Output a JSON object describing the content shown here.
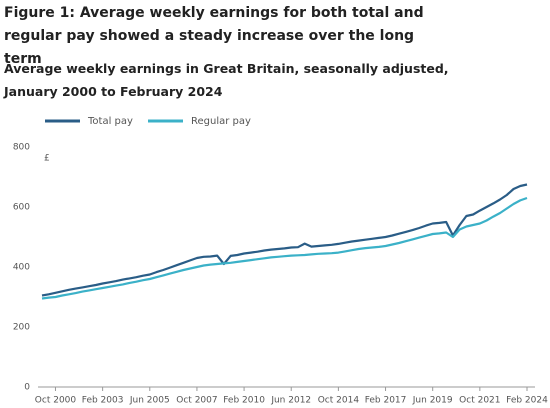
{
  "chart_data": {
    "type": "line",
    "title": "Figure 1: Average weekly earnings for both total and regular pay showed a steady increase over the long term",
    "subtitle": "Average weekly earnings in Great Britain, seasonally adjusted, January 2000 to February 2024",
    "y_unit": "£",
    "categories": [
      null,
      null,
      "Oct 2000",
      null,
      null,
      null,
      null,
      null,
      null,
      "Feb 2003",
      null,
      null,
      null,
      null,
      null,
      null,
      "Jun 2005",
      null,
      null,
      null,
      null,
      null,
      null,
      "Oct 2007",
      null,
      null,
      null,
      null,
      null,
      null,
      "Feb 2010",
      null,
      null,
      null,
      null,
      null,
      null,
      "Jun 2012",
      null,
      null,
      null,
      null,
      null,
      null,
      "Oct 2014",
      null,
      null,
      null,
      null,
      null,
      null,
      "Feb 2017",
      null,
      null,
      null,
      null,
      null,
      null,
      "Jun 2019",
      null,
      null,
      null,
      null,
      null,
      null,
      "Oct 2021",
      null,
      null,
      null,
      null,
      null,
      null,
      "Feb 2024"
    ],
    "series": [
      {
        "name": "Total pay",
        "color": "#2a5d87",
        "values": [
          305,
          309,
          314,
          319,
          324,
          328,
          332,
          336,
          340,
          345,
          349,
          353,
          358,
          362,
          366,
          371,
          375,
          383,
          390,
          398,
          406,
          414,
          422,
          430,
          434,
          435,
          438,
          410,
          437,
          440,
          445,
          448,
          451,
          455,
          458,
          460,
          462,
          465,
          466,
          478,
          468,
          470,
          472,
          474,
          477,
          481,
          485,
          488,
          491,
          494,
          497,
          500,
          505,
          511,
          517,
          523,
          530,
          538,
          545,
          547,
          550,
          505,
          540,
          570,
          575,
          588,
          600,
          612,
          625,
          640,
          660,
          670,
          675
        ]
      },
      {
        "name": "Regular pay",
        "color": "#3bb1c8",
        "values": [
          295,
          298,
          300,
          305,
          309,
          313,
          318,
          322,
          326,
          330,
          334,
          338,
          342,
          347,
          351,
          356,
          360,
          366,
          372,
          378,
          384,
          390,
          395,
          400,
          405,
          408,
          410,
          412,
          414,
          417,
          420,
          423,
          426,
          429,
          432,
          434,
          436,
          438,
          439,
          440,
          442,
          444,
          445,
          446,
          448,
          452,
          456,
          460,
          463,
          465,
          467,
          470,
          475,
          480,
          486,
          492,
          498,
          504,
          510,
          512,
          515,
          500,
          525,
          535,
          540,
          545,
          555,
          568,
          580,
          595,
          610,
          622,
          630
        ]
      }
    ],
    "ylim": [
      0,
      800
    ],
    "yticks": [
      0,
      200,
      400,
      600,
      800
    ],
    "grid": false
  }
}
